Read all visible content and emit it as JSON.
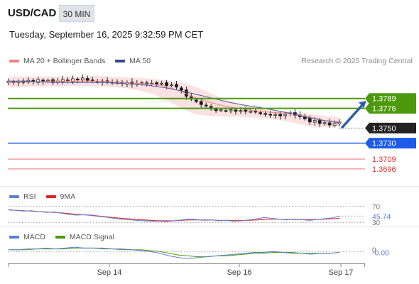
{
  "header": {
    "symbol": "USD/CAD",
    "timeframe": "30 MIN",
    "datetime": "Tuesday, September 16, 2025 9:32:59 PM CET",
    "copyright": "Research © 2025 Trading Central"
  },
  "colors": {
    "up_candle": "#ffffff",
    "down_candle": "#1a1a1a",
    "bollinger_fill": "#fcdcdc",
    "ma20": "#f08080",
    "ma50": "#4a5fa8",
    "resistance": "#4c9a0c",
    "pivot": "#1e5be8",
    "support": "#f0a0a0",
    "last_price": "#222222",
    "arrow": "#2e5fa8",
    "rsi": "#5b7ed6",
    "rsi_ma": "#e02020",
    "macd": "#5b7ed6",
    "macd_signal": "#4c9a0c"
  },
  "chart_data": [
    {
      "type": "candlestick",
      "legend": [
        {
          "name": "MA 20 + Bollinger Bands",
          "color": "#f08080"
        },
        {
          "name": "MA 50",
          "color": "#4a5fa8"
        }
      ],
      "ylim": [
        1.368,
        1.383
      ],
      "levels": [
        {
          "value": 1.3789,
          "label": "1.3789",
          "kind": "resistance"
        },
        {
          "value": 1.3776,
          "label": "1.3776",
          "kind": "resistance"
        },
        {
          "value": 1.375,
          "label": "1.3750",
          "kind": "last"
        },
        {
          "value": 1.373,
          "label": "1.3730",
          "kind": "pivot"
        },
        {
          "value": 1.3709,
          "label": "1.3709",
          "kind": "support"
        },
        {
          "value": 1.3696,
          "label": "1.3696",
          "kind": "support"
        }
      ],
      "price_path": [
        1.3812,
        1.381,
        1.3812,
        1.381,
        1.3813,
        1.3811,
        1.3814,
        1.3812,
        1.3813,
        1.381,
        1.3812,
        1.3814,
        1.3812,
        1.3815,
        1.3814,
        1.3816,
        1.3813,
        1.3812,
        1.3811,
        1.3812,
        1.3811,
        1.381,
        1.3811,
        1.3809,
        1.381,
        1.3808,
        1.3809,
        1.381,
        1.3808,
        1.3809,
        1.3808,
        1.3809,
        1.3806,
        1.3807,
        1.3804,
        1.38,
        1.3792,
        1.3788,
        1.3785,
        1.3781,
        1.3779,
        1.3775,
        1.3773,
        1.3774,
        1.3773,
        1.3774,
        1.3772,
        1.3773,
        1.3772,
        1.3772,
        1.3771,
        1.3769,
        1.3768,
        1.3767,
        1.3768,
        1.3766,
        1.3768,
        1.377,
        1.3767,
        1.3765,
        1.3762,
        1.3758,
        1.376,
        1.3756,
        1.3757,
        1.3754,
        1.3756,
        1.3758
      ],
      "ma20_path": [
        1.381,
        1.3811,
        1.3811,
        1.3812,
        1.3812,
        1.3812,
        1.3812,
        1.3811,
        1.381,
        1.3809,
        1.3808,
        1.3805,
        1.3798,
        1.379,
        1.3784,
        1.3779,
        1.3776,
        1.3773,
        1.3771,
        1.377,
        1.3768,
        1.3764,
        1.376,
        1.3758
      ],
      "ma50_path": [
        1.3812,
        1.3812,
        1.3811,
        1.381,
        1.381,
        1.381,
        1.381,
        1.3809,
        1.3808,
        1.3806,
        1.3803,
        1.3799,
        1.3794,
        1.3789,
        1.3784,
        1.378,
        1.3777,
        1.3773,
        1.3769,
        1.3764,
        1.376,
        1.3757
      ],
      "bb_upper": [
        1.3818,
        1.3818,
        1.3818,
        1.3818,
        1.3818,
        1.3818,
        1.3819,
        1.3818,
        1.3817,
        1.3816,
        1.3815,
        1.3813,
        1.381,
        1.3805,
        1.3796,
        1.3788,
        1.3782,
        1.3778,
        1.3775,
        1.3772,
        1.377,
        1.3768,
        1.3766,
        1.3764
      ],
      "bb_lower": [
        1.3804,
        1.3804,
        1.3805,
        1.3805,
        1.3805,
        1.3806,
        1.3805,
        1.3804,
        1.3803,
        1.38,
        1.3795,
        1.3787,
        1.3776,
        1.3768,
        1.3766,
        1.3765,
        1.3765,
        1.3764,
        1.3763,
        1.376,
        1.3756,
        1.3752,
        1.3751,
        1.3752
      ]
    },
    {
      "type": "line",
      "legend": [
        {
          "name": "RSI",
          "color": "#5b7ed6"
        },
        {
          "name": "9MA",
          "color": "#e02020"
        }
      ],
      "ylim": [
        25,
        80
      ],
      "reference_lines": [
        70,
        30
      ],
      "tick_labels": [
        "70",
        "30"
      ],
      "last_value_label": "45.74",
      "rsi": [
        62,
        60,
        58,
        59,
        57,
        55,
        56,
        53,
        50,
        48,
        49,
        47,
        45,
        43,
        40,
        38,
        37,
        35,
        34,
        33,
        33,
        32,
        34,
        36,
        38,
        37,
        35,
        36,
        34,
        35,
        33,
        34,
        36,
        39,
        42,
        40,
        38,
        36,
        38,
        37,
        35,
        37,
        39,
        41,
        45.74
      ],
      "rsi_ma": [
        61,
        60,
        59,
        58,
        57,
        56,
        55,
        54,
        52,
        50,
        49,
        48,
        46,
        44,
        42,
        40,
        39,
        37,
        36,
        35,
        34,
        34,
        34,
        35,
        36,
        36,
        36,
        36,
        35,
        35,
        35,
        35,
        35,
        36,
        37,
        38,
        38,
        37,
        37,
        37,
        37,
        37,
        38,
        39,
        40
      ]
    },
    {
      "type": "line",
      "legend": [
        {
          "name": "MACD",
          "color": "#5b7ed6"
        },
        {
          "name": "MACD Signal",
          "color": "#4c9a0c"
        }
      ],
      "ylim": [
        -0.0012,
        0.001
      ],
      "zero_line": 0,
      "tick_labels": [
        "0"
      ],
      "last_value_label": "-0.00",
      "macd": [
        0.0002,
        0.0002,
        0.0003,
        0.0003,
        0.0004,
        0.0003,
        0.0004,
        0.0005,
        0.0004,
        0.0004,
        0.0003,
        0.0003,
        0.0002,
        0.0002,
        0.0001,
        0.0,
        -0.0002,
        -0.0005,
        -0.0007,
        -0.0008,
        -0.0007,
        -0.0006,
        -0.0005,
        -0.0004,
        -0.0003,
        -0.0002,
        -0.0001,
        -0.0001,
        0.0,
        -0.0001,
        -0.0002,
        -0.0002,
        -0.0003,
        -0.0002,
        -0.0002,
        -0.0001
      ],
      "macd_signal": [
        0.0002,
        0.0002,
        0.0002,
        0.0003,
        0.0003,
        0.0003,
        0.0003,
        0.0004,
        0.0004,
        0.0004,
        0.0004,
        0.0003,
        0.0003,
        0.0002,
        0.0002,
        0.0001,
        0.0,
        -0.0002,
        -0.0004,
        -0.0005,
        -0.0006,
        -0.0006,
        -0.0005,
        -0.0005,
        -0.0004,
        -0.0003,
        -0.0002,
        -0.0002,
        -0.0001,
        -0.0001,
        -0.0001,
        -0.0002,
        -0.0002,
        -0.0002,
        -0.0002,
        -0.0001
      ]
    }
  ],
  "x_axis": {
    "tick_labels": [
      "Sep 14",
      "Sep 16",
      "Sep 17"
    ]
  }
}
